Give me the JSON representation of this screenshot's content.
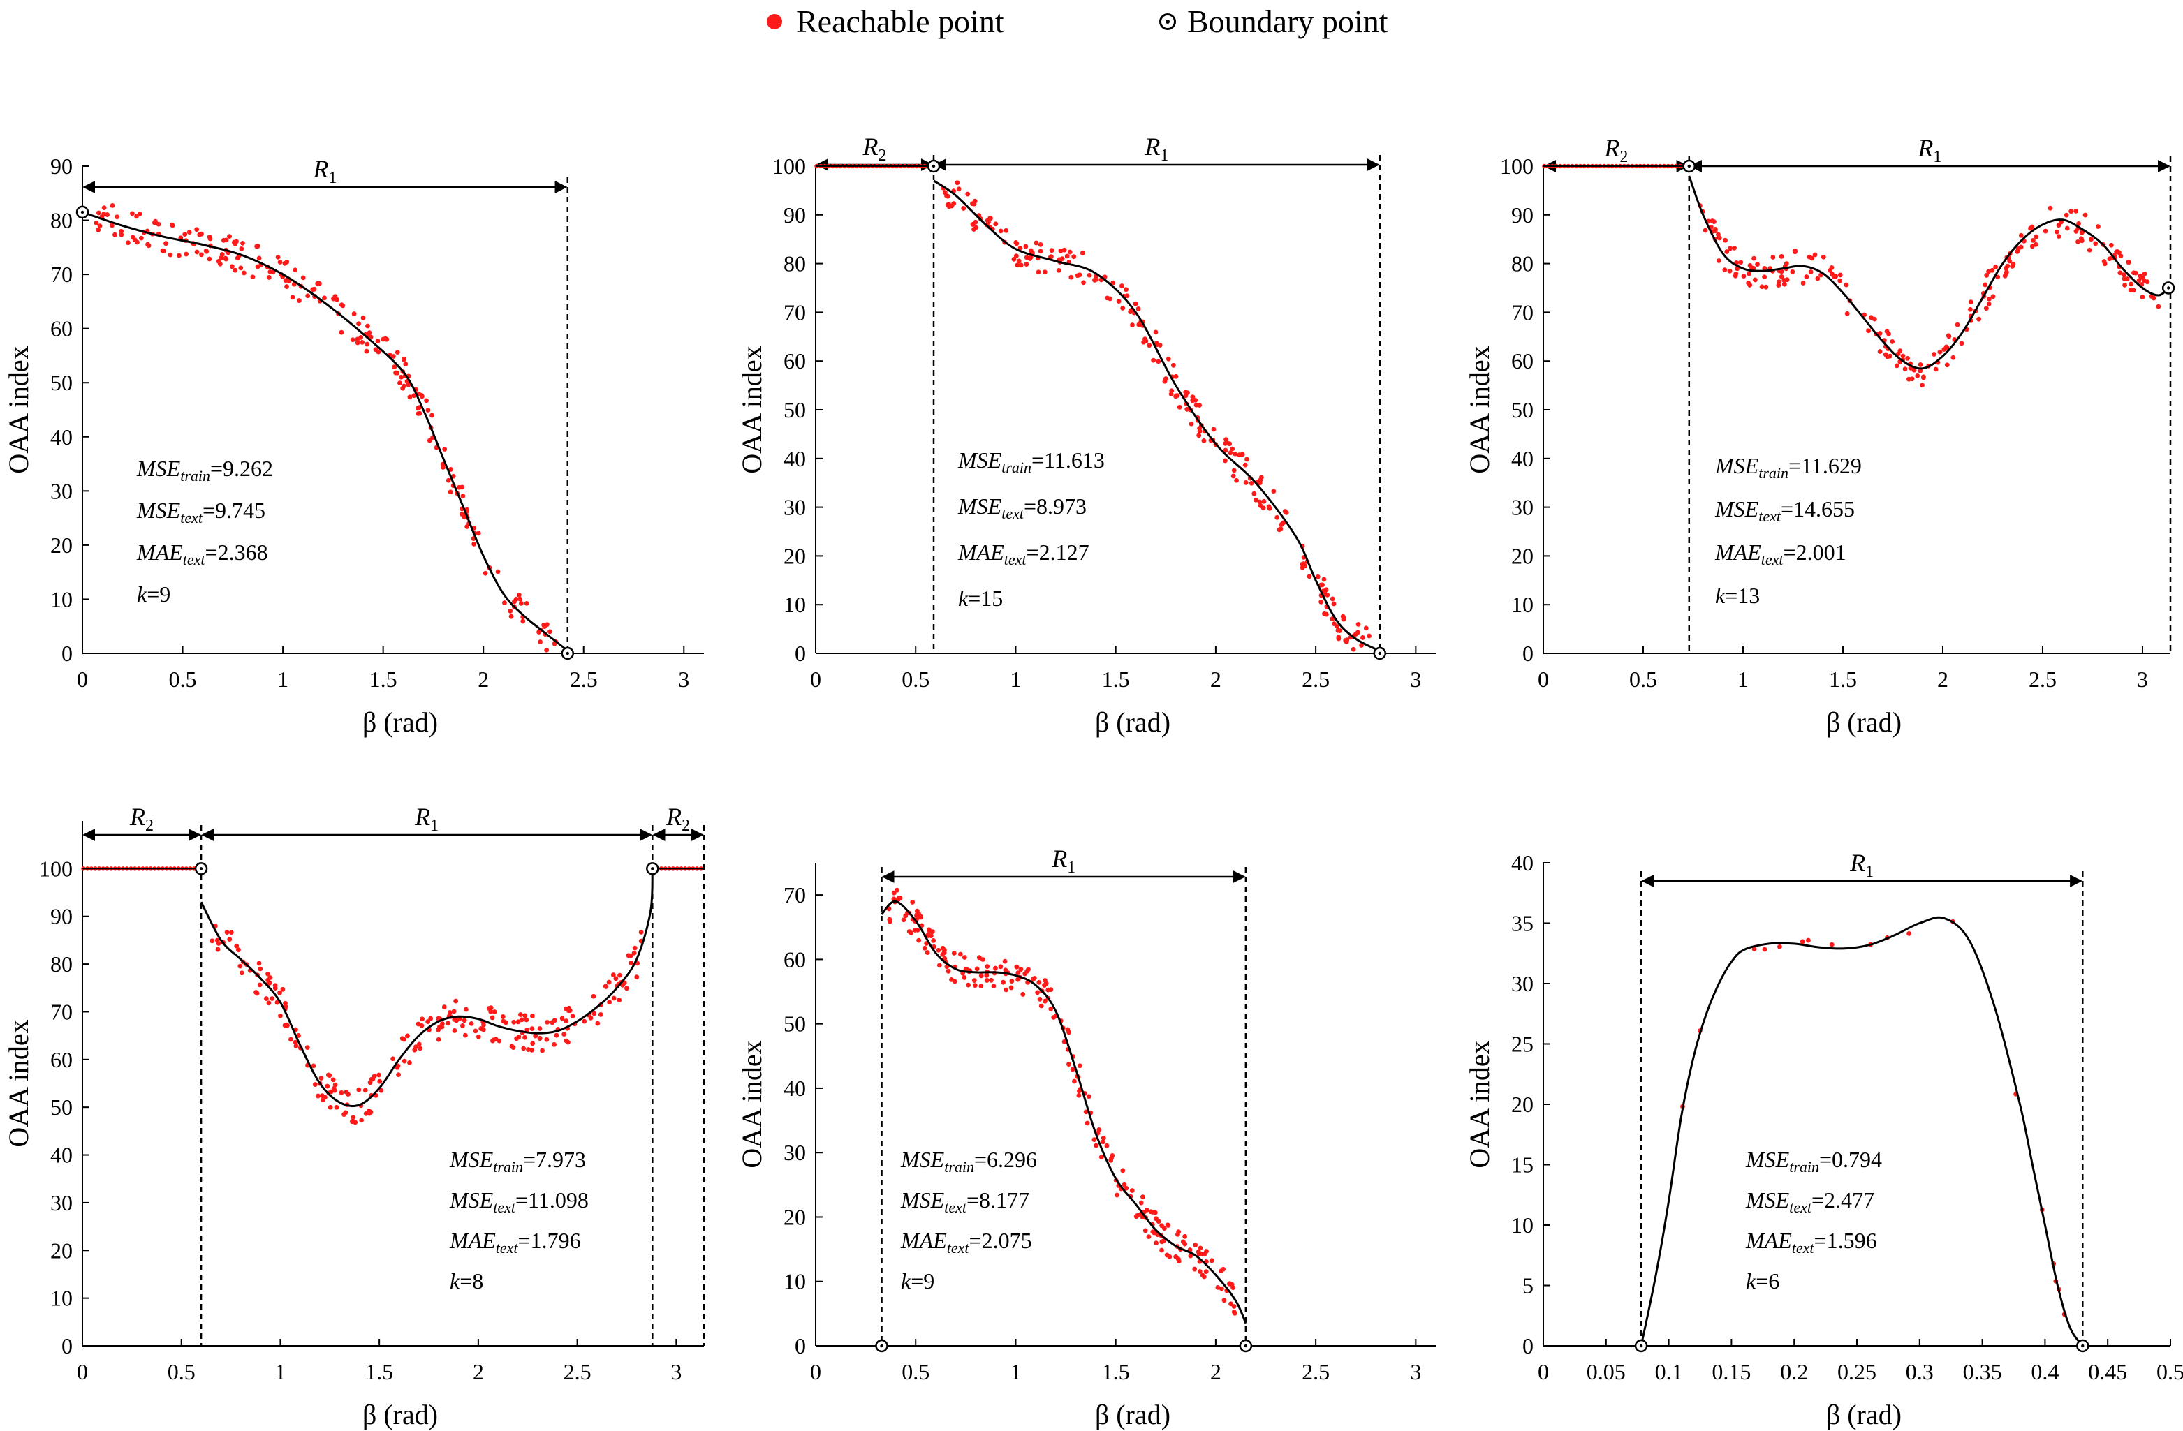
{
  "legend": {
    "reachable_label": "Reachable point",
    "boundary_label": "Boundary point",
    "reachable_color": "#ff1a1a",
    "curve_color": "#000000"
  },
  "chart_data": [
    {
      "type": "scatter",
      "panel": "top-left",
      "xlabel": "β (rad)",
      "ylabel": "OAA index",
      "xlim": [
        0,
        3.1
      ],
      "ylim": [
        0,
        90
      ],
      "xticks": [
        0,
        0.5,
        1,
        1.5,
        2,
        2.5,
        3
      ],
      "xtick_labels": [
        "0",
        "0.5",
        "1",
        "1.5",
        "2",
        "2.5",
        "3"
      ],
      "yticks": [
        0,
        10,
        20,
        30,
        40,
        50,
        60,
        70,
        80,
        90
      ],
      "fit_curve": [
        [
          0,
          81.5
        ],
        [
          0.2,
          79
        ],
        [
          0.4,
          77
        ],
        [
          0.6,
          75.5
        ],
        [
          0.8,
          73.5
        ],
        [
          1.0,
          70
        ],
        [
          1.2,
          65
        ],
        [
          1.4,
          59
        ],
        [
          1.6,
          52
        ],
        [
          1.7,
          45
        ],
        [
          1.8,
          36
        ],
        [
          1.9,
          27
        ],
        [
          2.0,
          18
        ],
        [
          2.1,
          11
        ],
        [
          2.2,
          7
        ],
        [
          2.3,
          4
        ],
        [
          2.42,
          0.5
        ]
      ],
      "boundary_points": [
        [
          0,
          81.5
        ],
        [
          2.42,
          0
        ]
      ],
      "regions": [
        {
          "label": "R",
          "sub": "1",
          "from": 0,
          "to": 2.42
        }
      ],
      "stats": [
        {
          "name": "MSE",
          "sub": "train",
          "value": "=9.262"
        },
        {
          "name": "MSE",
          "sub": "text",
          "value": "=9.745"
        },
        {
          "name": "MAE",
          "sub": "text",
          "value": "=2.368"
        },
        {
          "name": "k",
          "sub": "",
          "value": "=9"
        }
      ]
    },
    {
      "type": "scatter",
      "panel": "top-middle",
      "xlabel": "β (rad)",
      "ylabel": "OAA index",
      "xlim": [
        0,
        3.1
      ],
      "ylim": [
        0,
        100
      ],
      "xticks": [
        0,
        0.5,
        1,
        1.5,
        2,
        2.5,
        3
      ],
      "xtick_labels": [
        "0",
        "0.5",
        "1",
        "1.5",
        "2",
        "2.5",
        "3"
      ],
      "yticks": [
        0,
        10,
        20,
        30,
        40,
        50,
        60,
        70,
        80,
        90,
        100
      ],
      "fit_curve": [
        [
          0.59,
          97
        ],
        [
          0.7,
          94
        ],
        [
          0.85,
          88
        ],
        [
          1.0,
          83
        ],
        [
          1.2,
          80.5
        ],
        [
          1.4,
          78
        ],
        [
          1.6,
          70
        ],
        [
          1.8,
          55
        ],
        [
          2.0,
          43
        ],
        [
          2.2,
          35
        ],
        [
          2.4,
          24
        ],
        [
          2.5,
          15
        ],
        [
          2.6,
          7
        ],
        [
          2.7,
          3
        ],
        [
          2.82,
          0.5
        ]
      ],
      "flat_segment": [
        0,
        0.59,
        100
      ],
      "boundary_points": [
        [
          0.59,
          100
        ],
        [
          2.82,
          0
        ]
      ],
      "regions": [
        {
          "label": "R",
          "sub": "2",
          "from": 0,
          "to": 0.59
        },
        {
          "label": "R",
          "sub": "1",
          "from": 0.59,
          "to": 2.82
        }
      ],
      "stats": [
        {
          "name": "MSE",
          "sub": "train",
          "value": "=11.613"
        },
        {
          "name": "MSE",
          "sub": "text",
          "value": "=8.973"
        },
        {
          "name": "MAE",
          "sub": "text",
          "value": "=2.127"
        },
        {
          "name": "k",
          "sub": "",
          "value": "=15"
        }
      ]
    },
    {
      "type": "scatter",
      "panel": "top-right",
      "xlabel": "β (rad)",
      "ylabel": "OAA index",
      "xlim": [
        0,
        3.14
      ],
      "ylim": [
        0,
        100
      ],
      "xticks": [
        0,
        0.5,
        1,
        1.5,
        2,
        2.5,
        3
      ],
      "xtick_labels": [
        "0",
        "0.5",
        "1",
        "1.5",
        "2",
        "2.5",
        "3"
      ],
      "yticks": [
        0,
        10,
        20,
        30,
        40,
        50,
        60,
        70,
        80,
        90,
        100
      ],
      "fit_curve": [
        [
          0.73,
          98
        ],
        [
          0.8,
          90
        ],
        [
          0.9,
          82
        ],
        [
          1.0,
          79
        ],
        [
          1.1,
          78.5
        ],
        [
          1.2,
          79
        ],
        [
          1.3,
          79.5
        ],
        [
          1.4,
          78
        ],
        [
          1.5,
          74
        ],
        [
          1.6,
          69
        ],
        [
          1.7,
          64
        ],
        [
          1.8,
          60
        ],
        [
          1.9,
          58.5
        ],
        [
          2.0,
          61
        ],
        [
          2.1,
          66
        ],
        [
          2.2,
          73
        ],
        [
          2.3,
          80
        ],
        [
          2.4,
          85
        ],
        [
          2.5,
          88
        ],
        [
          2.6,
          89
        ],
        [
          2.7,
          87
        ],
        [
          2.8,
          84
        ],
        [
          2.9,
          79
        ],
        [
          3.0,
          75
        ],
        [
          3.08,
          73.5
        ],
        [
          3.13,
          75
        ]
      ],
      "flat_segment": [
        0,
        0.73,
        100
      ],
      "boundary_points": [
        [
          0.73,
          100
        ],
        [
          3.13,
          75
        ]
      ],
      "regions": [
        {
          "label": "R",
          "sub": "2",
          "from": 0,
          "to": 0.73
        },
        {
          "label": "R",
          "sub": "1",
          "from": 0.73,
          "to": 3.14
        }
      ],
      "stats": [
        {
          "name": "MSE",
          "sub": "train",
          "value": "=11.629"
        },
        {
          "name": "MSE",
          "sub": "text",
          "value": "=14.655"
        },
        {
          "name": "MAE",
          "sub": "text",
          "value": "=2.001"
        },
        {
          "name": "k",
          "sub": "",
          "value": "=13"
        }
      ]
    },
    {
      "type": "scatter",
      "panel": "bottom-left",
      "xlabel": "β (rad)",
      "ylabel": "OAA index",
      "xlim": [
        0,
        3.14
      ],
      "ylim": [
        0,
        110
      ],
      "xticks": [
        0,
        0.5,
        1,
        1.5,
        2,
        2.5,
        3
      ],
      "xtick_labels": [
        "0",
        "0.5",
        "1",
        "1.5",
        "2",
        "2.5",
        "3"
      ],
      "yticks": [
        0,
        10,
        20,
        30,
        40,
        50,
        60,
        70,
        80,
        90,
        100
      ],
      "fit_curve": [
        [
          0.6,
          93
        ],
        [
          0.7,
          85
        ],
        [
          0.8,
          81
        ],
        [
          0.9,
          77
        ],
        [
          1.0,
          72
        ],
        [
          1.1,
          63
        ],
        [
          1.2,
          55
        ],
        [
          1.3,
          51
        ],
        [
          1.4,
          50.5
        ],
        [
          1.5,
          54
        ],
        [
          1.6,
          60
        ],
        [
          1.7,
          65
        ],
        [
          1.8,
          68
        ],
        [
          1.9,
          69
        ],
        [
          2.0,
          68.5
        ],
        [
          2.1,
          67
        ],
        [
          2.2,
          66
        ],
        [
          2.3,
          65.5
        ],
        [
          2.4,
          66
        ],
        [
          2.5,
          68
        ],
        [
          2.6,
          71
        ],
        [
          2.7,
          75
        ],
        [
          2.8,
          81
        ],
        [
          2.87,
          91
        ],
        [
          2.88,
          100
        ]
      ],
      "flat_segments": [
        [
          0,
          0.6,
          100
        ],
        [
          2.88,
          3.14,
          100
        ]
      ],
      "boundary_points": [
        [
          0.6,
          100
        ],
        [
          2.88,
          100
        ]
      ],
      "regions": [
        {
          "label": "R",
          "sub": "2",
          "from": 0,
          "to": 0.6
        },
        {
          "label": "R",
          "sub": "1",
          "from": 0.6,
          "to": 2.88
        },
        {
          "label": "R",
          "sub": "2",
          "from": 2.88,
          "to": 3.14
        }
      ],
      "stats": [
        {
          "name": "MSE",
          "sub": "train",
          "value": "=7.973"
        },
        {
          "name": "MSE",
          "sub": "text",
          "value": "=11.098"
        },
        {
          "name": "MAE",
          "sub": "text",
          "value": "=1.796"
        },
        {
          "name": "k",
          "sub": "",
          "value": "=8"
        }
      ]
    },
    {
      "type": "scatter",
      "panel": "bottom-middle",
      "xlabel": "β (rad)",
      "ylabel": "OAA index",
      "xlim": [
        0,
        3.1
      ],
      "ylim": [
        0,
        75
      ],
      "xticks": [
        0,
        0.5,
        1,
        1.5,
        2,
        2.5,
        3
      ],
      "xtick_labels": [
        "0",
        "0.5",
        "1",
        "1.5",
        "2",
        "2.5",
        "3"
      ],
      "yticks": [
        0,
        10,
        20,
        30,
        40,
        50,
        60,
        70
      ],
      "fit_curve": [
        [
          0.33,
          67
        ],
        [
          0.4,
          69
        ],
        [
          0.5,
          66
        ],
        [
          0.6,
          61
        ],
        [
          0.7,
          58.5
        ],
        [
          0.8,
          58
        ],
        [
          0.9,
          58
        ],
        [
          1.0,
          57.5
        ],
        [
          1.1,
          56
        ],
        [
          1.2,
          52
        ],
        [
          1.3,
          43
        ],
        [
          1.4,
          33
        ],
        [
          1.5,
          26
        ],
        [
          1.6,
          22
        ],
        [
          1.7,
          18
        ],
        [
          1.8,
          15.5
        ],
        [
          1.9,
          14
        ],
        [
          2.0,
          11
        ],
        [
          2.1,
          7
        ],
        [
          2.15,
          3.5
        ]
      ],
      "boundary_points": [
        [
          0.33,
          0
        ],
        [
          2.15,
          0
        ]
      ],
      "regions": [
        {
          "label": "R",
          "sub": "1",
          "from": 0.33,
          "to": 2.15
        }
      ],
      "stats": [
        {
          "name": "MSE",
          "sub": "train",
          "value": "=6.296"
        },
        {
          "name": "MSE",
          "sub": "text",
          "value": "=8.177"
        },
        {
          "name": "MAE",
          "sub": "text",
          "value": "=2.075"
        },
        {
          "name": "k",
          "sub": "",
          "value": "=9"
        }
      ]
    },
    {
      "type": "scatter",
      "panel": "bottom-right",
      "xlabel": "β (rad)",
      "ylabel": "OAA index",
      "xlim": [
        0,
        0.5
      ],
      "ylim": [
        0,
        40
      ],
      "xticks": [
        0,
        0.05,
        0.1,
        0.15,
        0.2,
        0.25,
        0.3,
        0.35,
        0.4,
        0.45,
        0.5
      ],
      "xtick_labels": [
        "0",
        "0.05",
        "0.1",
        "0.15",
        "0.2",
        "0.25",
        "0.3",
        "0.35",
        "0.4",
        "0.45",
        "0.5"
      ],
      "yticks": [
        0,
        5,
        10,
        15,
        20,
        25,
        30,
        35,
        40
      ],
      "fit_curve": [
        [
          0.078,
          0
        ],
        [
          0.09,
          6
        ],
        [
          0.1,
          12
        ],
        [
          0.11,
          19
        ],
        [
          0.12,
          24
        ],
        [
          0.13,
          27.5
        ],
        [
          0.14,
          30
        ],
        [
          0.15,
          31.8
        ],
        [
          0.16,
          32.8
        ],
        [
          0.18,
          33.3
        ],
        [
          0.2,
          33.3
        ],
        [
          0.22,
          33
        ],
        [
          0.24,
          32.9
        ],
        [
          0.26,
          33.2
        ],
        [
          0.28,
          34
        ],
        [
          0.3,
          35
        ],
        [
          0.32,
          35.4
        ],
        [
          0.34,
          33.5
        ],
        [
          0.36,
          28
        ],
        [
          0.38,
          20
        ],
        [
          0.39,
          15
        ],
        [
          0.4,
          10
        ],
        [
          0.41,
          5
        ],
        [
          0.42,
          1.5
        ],
        [
          0.43,
          0
        ]
      ],
      "boundary_points": [
        [
          0.078,
          0
        ],
        [
          0.43,
          0
        ]
      ],
      "regions": [
        {
          "label": "R",
          "sub": "1",
          "from": 0.078,
          "to": 0.43
        }
      ],
      "stats": [
        {
          "name": "MSE",
          "sub": "train",
          "value": "=0.794"
        },
        {
          "name": "MSE",
          "sub": "text",
          "value": "=2.477"
        },
        {
          "name": "MAE",
          "sub": "text",
          "value": "=1.596"
        },
        {
          "name": "k",
          "sub": "",
          "value": "=6"
        }
      ]
    }
  ]
}
